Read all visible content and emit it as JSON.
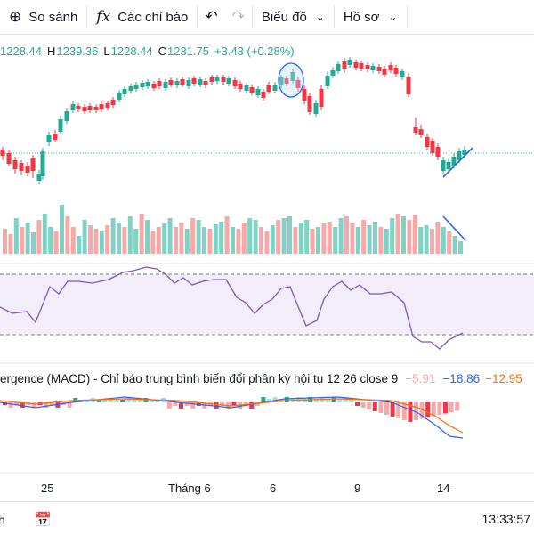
{
  "toolbar": {
    "compare_label": "So sánh",
    "indicators_label": "Các chỉ báo",
    "chart_label": "Biểu đồ",
    "profile_label": "Hồ sơ",
    "compare_icon": "compare-circle-icon",
    "indicators_icon": "fx-icon",
    "undo_icon": "undo-icon",
    "redo_icon": "redo-icon"
  },
  "ohlc": {
    "open": "1228.44",
    "high_label": "H",
    "high": "1239.36",
    "low_label": "L",
    "low": "1228.44",
    "close_label": "C",
    "close": "1231.75",
    "change": "+3.43 (+0.28%)"
  },
  "macd": {
    "title": "ergence (MACD) - Chỉ báo trung bình biến đổi phân kỳ hội tụ 12 26 close 9",
    "histogram": "−5.91",
    "macd_line": "−18.86",
    "signal_line": "−12.95"
  },
  "time_axis": {
    "labels": [
      "25",
      "Tháng 6",
      "6",
      "9",
      "14"
    ]
  },
  "footer": {
    "left_text": "h",
    "time": "13:33:57",
    "calendar_icon": "calendar-icon"
  },
  "colors": {
    "up": "#22ab94",
    "down": "#f23645",
    "rsi_line": "#7e57c2",
    "rsi_band": "#ede7f6",
    "macd": "#2962ff",
    "signal": "#ff6d00",
    "annotation": "#2962ff"
  }
}
